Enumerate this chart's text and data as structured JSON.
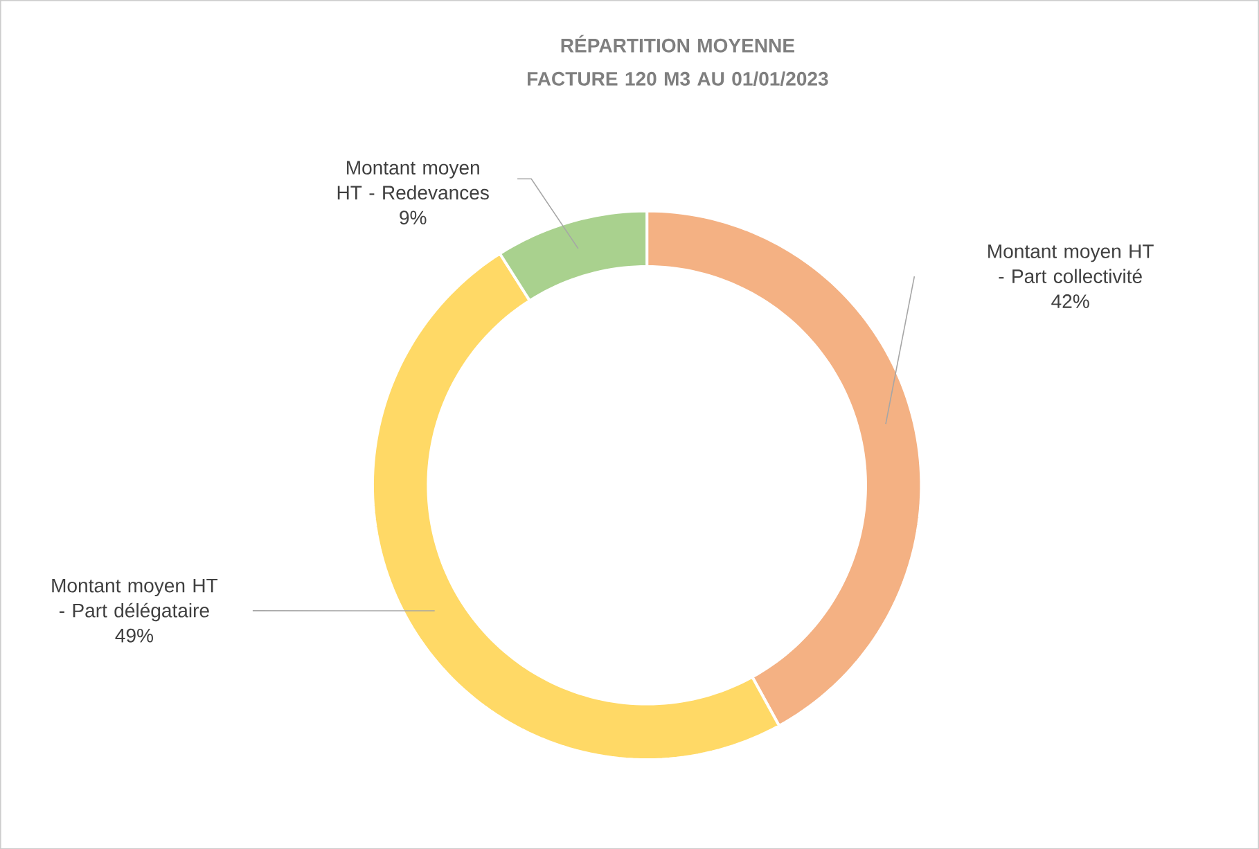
{
  "chart_data": {
    "type": "donut",
    "title": "RÉPARTITION MOYENNE FACTURE 120 M3 AU 01/01/2023",
    "categories": [
      "Montant moyen HT - Part collectivité",
      "Montant moyen HT - Part délégataire",
      "Montant moyen HT - Redevances"
    ],
    "values": [
      42,
      49,
      9
    ],
    "value_labels": [
      "42%",
      "49%",
      "9%"
    ],
    "colors": [
      "#f4b183",
      "#ffd966",
      "#a9d18e"
    ]
  }
}
